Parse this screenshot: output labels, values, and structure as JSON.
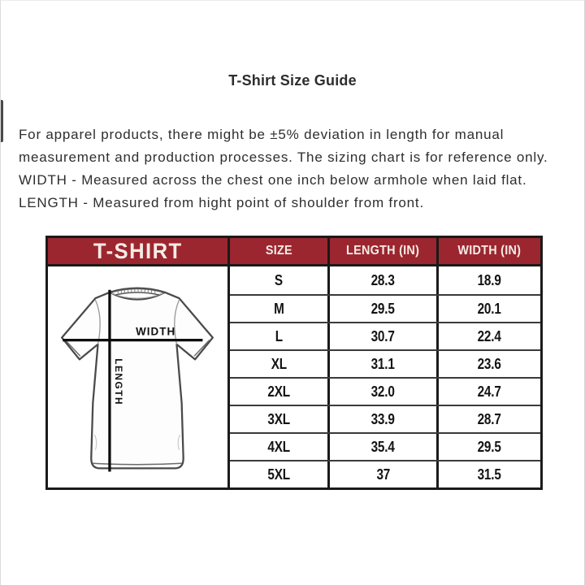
{
  "page": {
    "title": "T-Shirt Size Guide",
    "intro": "For apparel products, there might be ±5% deviation in length for manual measurement and production processes. The sizing chart is for reference only.",
    "width_note": "WIDTH - Measured across the chest one inch below armhole when laid flat.",
    "length_note": "LENGTH - Measured from hight point of shoulder from front."
  },
  "size_table": {
    "product_label": "T-SHIRT",
    "columns": [
      "SIZE",
      "LENGTH (IN)",
      "WIDTH (IN)"
    ],
    "rows": [
      {
        "size": "S",
        "length": "28.3",
        "width": "18.9"
      },
      {
        "size": "M",
        "length": "29.5",
        "width": "20.1"
      },
      {
        "size": "L",
        "length": "30.7",
        "width": "22.4"
      },
      {
        "size": "XL",
        "length": "31.1",
        "width": "23.6"
      },
      {
        "size": "2XL",
        "length": "32.0",
        "width": "24.7"
      },
      {
        "size": "3XL",
        "length": "33.9",
        "width": "28.7"
      },
      {
        "size": "4XL",
        "length": "35.4",
        "width": "29.5"
      },
      {
        "size": "5XL",
        "length": "37",
        "width": "31.5"
      }
    ]
  },
  "diagram": {
    "width_label": "WIDTH",
    "length_label": "LENGTH"
  },
  "colors": {
    "header_bg": "#9C2630",
    "header_text": "#F5ECE5",
    "table_border": "#1A1A1A",
    "row_divider": "#3A3A3A"
  }
}
